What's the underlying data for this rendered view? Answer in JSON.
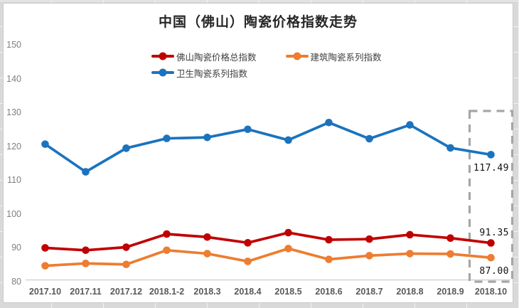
{
  "chart_data": {
    "type": "line",
    "title": "中国（佛山）陶瓷价格指数走势",
    "categories": [
      "2017.10",
      "2017.11",
      "2017.12",
      "2018.1-2",
      "2018.3",
      "2018.4",
      "2018.5",
      "2018.6",
      "2018.7",
      "2018.8",
      "2018.9",
      "2018.10"
    ],
    "series": [
      {
        "name": "佛山陶瓷价格总指数",
        "color": "#C00000",
        "values": [
          89.9,
          89.2,
          90.1,
          94.0,
          93.1,
          91.4,
          94.4,
          92.3,
          92.5,
          93.8,
          92.8,
          91.35
        ]
      },
      {
        "name": "建筑陶瓷系列指数",
        "color": "#ED7D31",
        "values": [
          84.6,
          85.3,
          85.0,
          89.2,
          88.2,
          85.9,
          89.7,
          86.5,
          87.6,
          88.2,
          88.1,
          87.0
        ]
      },
      {
        "name": "卫生陶瓷系列指数",
        "color": "#1B73BE",
        "values": [
          120.6,
          112.4,
          119.4,
          122.3,
          122.6,
          125.0,
          121.8,
          127.0,
          122.2,
          126.3,
          119.5,
          117.49
        ]
      }
    ],
    "ylim": [
      80,
      150
    ],
    "yticks": [
      80,
      90,
      100,
      110,
      120,
      130,
      140,
      150
    ],
    "grid": false,
    "legend_position": "top-center",
    "annotations": [
      {
        "text": "117.49",
        "series": "卫生陶瓷系列指数",
        "category": "2018.10",
        "placement": "below"
      },
      {
        "text": "91.35",
        "series": "佛山陶瓷价格总指数",
        "category": "2018.10",
        "placement": "above"
      },
      {
        "text": "87.00",
        "series": "建筑陶瓷系列指数",
        "category": "2018.10",
        "placement": "below"
      }
    ],
    "highlight": {
      "category": "2018.10",
      "style": "dashed-box",
      "color": "#A6A6A6"
    }
  },
  "legend": {
    "rows": [
      [
        "佛山陶瓷价格总指数",
        "建筑陶瓷系列指数"
      ],
      [
        "卫生陶瓷系列指数"
      ]
    ]
  },
  "axis_colors": {
    "axis_line": "#d2d2d2",
    "ytick_text": "#7f7f7f",
    "xtick_text": "#595959"
  }
}
